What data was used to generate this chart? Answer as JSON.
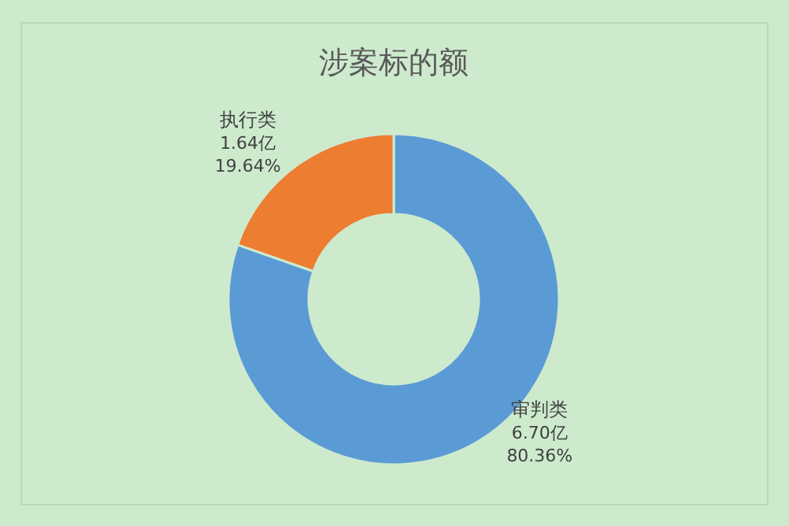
{
  "chart_data": {
    "type": "donut",
    "title": "涉案标的额",
    "categories": [
      "审判类",
      "执行类"
    ],
    "values": [
      6.7,
      1.64
    ],
    "colors": [
      "#5b9bd5",
      "#ed7d31"
    ],
    "value_labels": [
      "6.70亿\n80.36%",
      "1.64亿\n19.64%"
    ]
  }
}
